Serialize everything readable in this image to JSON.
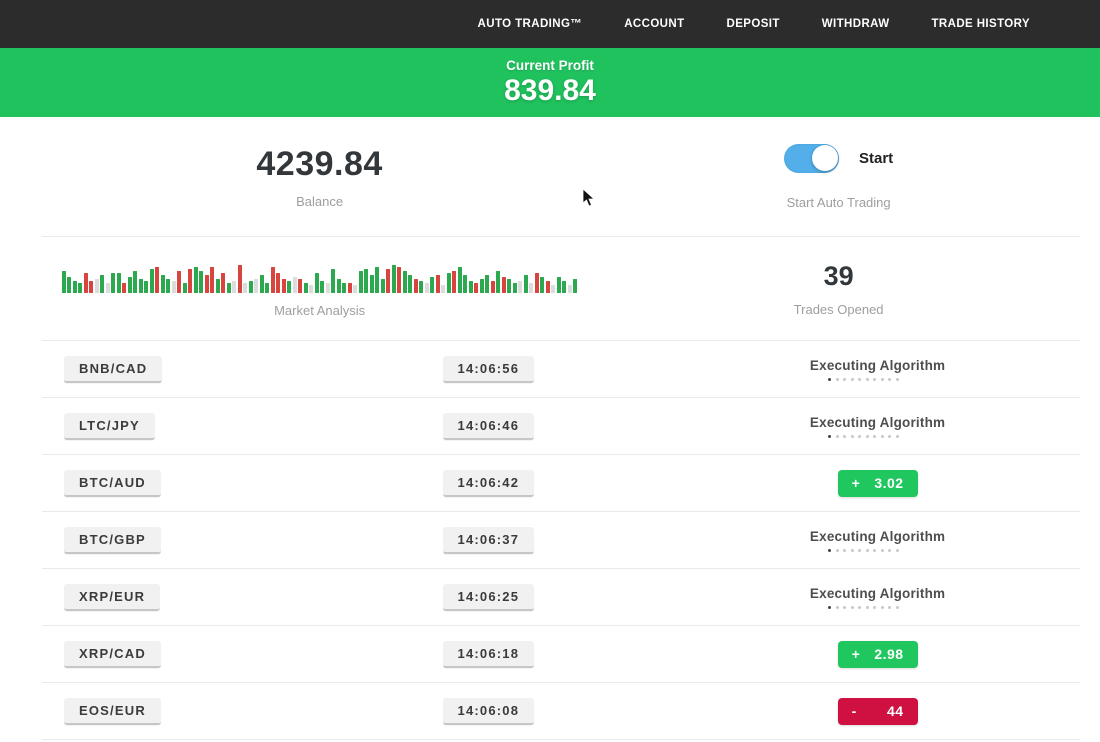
{
  "nav": {
    "items": [
      {
        "label": "AUTO TRADING™"
      },
      {
        "label": "ACCOUNT"
      },
      {
        "label": "DEPOSIT"
      },
      {
        "label": "WITHDRAW"
      },
      {
        "label": "TRADE HISTORY"
      }
    ]
  },
  "profit_banner": {
    "label": "Current Profit",
    "value": "839.84"
  },
  "stats": {
    "balance": {
      "value": "4239.84",
      "label": "Balance"
    },
    "auto_trading": {
      "toggle_label": "Start",
      "label": "Start Auto Trading",
      "enabled": true
    },
    "market_analysis": {
      "label": "Market Analysis"
    },
    "trades_opened": {
      "value": "39",
      "label": "Trades Opened"
    }
  },
  "chart_data": {
    "type": "bar",
    "title": "Market Analysis",
    "note": "mini volume-style bars, bottom-aligned; h = height px, c = g(green)/r(red)/p(pale)",
    "bars": [
      [
        22,
        "g"
      ],
      [
        16,
        "g"
      ],
      [
        12,
        "g"
      ],
      [
        10,
        "g"
      ],
      [
        20,
        "r"
      ],
      [
        12,
        "r"
      ],
      [
        14,
        "p"
      ],
      [
        18,
        "g"
      ],
      [
        10,
        "p"
      ],
      [
        20,
        "g"
      ],
      [
        20,
        "g"
      ],
      [
        10,
        "r"
      ],
      [
        16,
        "g"
      ],
      [
        22,
        "g"
      ],
      [
        14,
        "g"
      ],
      [
        12,
        "g"
      ],
      [
        24,
        "g"
      ],
      [
        26,
        "r"
      ],
      [
        18,
        "g"
      ],
      [
        14,
        "g"
      ],
      [
        12,
        "p"
      ],
      [
        22,
        "r"
      ],
      [
        10,
        "g"
      ],
      [
        24,
        "r"
      ],
      [
        26,
        "g"
      ],
      [
        22,
        "g"
      ],
      [
        18,
        "r"
      ],
      [
        26,
        "r"
      ],
      [
        14,
        "g"
      ],
      [
        20,
        "r"
      ],
      [
        10,
        "g"
      ],
      [
        12,
        "p"
      ],
      [
        28,
        "r"
      ],
      [
        10,
        "p"
      ],
      [
        12,
        "g"
      ],
      [
        14,
        "p"
      ],
      [
        18,
        "g"
      ],
      [
        10,
        "g"
      ],
      [
        26,
        "r"
      ],
      [
        20,
        "r"
      ],
      [
        14,
        "r"
      ],
      [
        12,
        "g"
      ],
      [
        16,
        "p"
      ],
      [
        14,
        "r"
      ],
      [
        10,
        "g"
      ],
      [
        8,
        "p"
      ],
      [
        20,
        "g"
      ],
      [
        12,
        "g"
      ],
      [
        10,
        "p"
      ],
      [
        24,
        "g"
      ],
      [
        14,
        "g"
      ],
      [
        10,
        "g"
      ],
      [
        10,
        "r"
      ],
      [
        8,
        "p"
      ],
      [
        22,
        "g"
      ],
      [
        24,
        "g"
      ],
      [
        18,
        "g"
      ],
      [
        26,
        "g"
      ],
      [
        14,
        "g"
      ],
      [
        24,
        "r"
      ],
      [
        28,
        "g"
      ],
      [
        26,
        "r"
      ],
      [
        22,
        "g"
      ],
      [
        18,
        "g"
      ],
      [
        14,
        "r"
      ],
      [
        12,
        "g"
      ],
      [
        10,
        "p"
      ],
      [
        16,
        "g"
      ],
      [
        18,
        "r"
      ],
      [
        8,
        "p"
      ],
      [
        20,
        "g"
      ],
      [
        22,
        "r"
      ],
      [
        26,
        "g"
      ],
      [
        18,
        "g"
      ],
      [
        12,
        "g"
      ],
      [
        10,
        "r"
      ],
      [
        14,
        "g"
      ],
      [
        18,
        "g"
      ],
      [
        12,
        "r"
      ],
      [
        22,
        "g"
      ],
      [
        16,
        "r"
      ],
      [
        14,
        "g"
      ],
      [
        10,
        "g"
      ],
      [
        12,
        "p"
      ],
      [
        18,
        "g"
      ],
      [
        10,
        "p"
      ],
      [
        20,
        "r"
      ],
      [
        16,
        "g"
      ],
      [
        12,
        "r"
      ],
      [
        8,
        "p"
      ],
      [
        16,
        "g"
      ],
      [
        12,
        "g"
      ],
      [
        8,
        "p"
      ],
      [
        14,
        "g"
      ]
    ]
  },
  "trades": {
    "executing_label": "Executing Algorithm",
    "rows": [
      {
        "pair": "BNB/CAD",
        "time": "14:06:56",
        "status": "executing"
      },
      {
        "pair": "LTC/JPY",
        "time": "14:06:46",
        "status": "executing"
      },
      {
        "pair": "BTC/AUD",
        "time": "14:06:42",
        "status": "profit",
        "sign": "+",
        "amount": "3.02"
      },
      {
        "pair": "BTC/GBP",
        "time": "14:06:37",
        "status": "executing"
      },
      {
        "pair": "XRP/EUR",
        "time": "14:06:25",
        "status": "executing"
      },
      {
        "pair": "XRP/CAD",
        "time": "14:06:18",
        "status": "profit",
        "sign": "+",
        "amount": "2.98"
      },
      {
        "pair": "EOS/EUR",
        "time": "14:06:08",
        "status": "loss",
        "sign": "-",
        "amount": "44"
      }
    ]
  },
  "colors": {
    "nav_bg": "#2d2c2c",
    "banner_green": "#20c25e",
    "badge_green": "#1fc75e",
    "badge_red": "#ce1141",
    "toggle_blue": "#53aee9",
    "bar_green": "#2ca94f",
    "bar_red": "#d8453e"
  }
}
